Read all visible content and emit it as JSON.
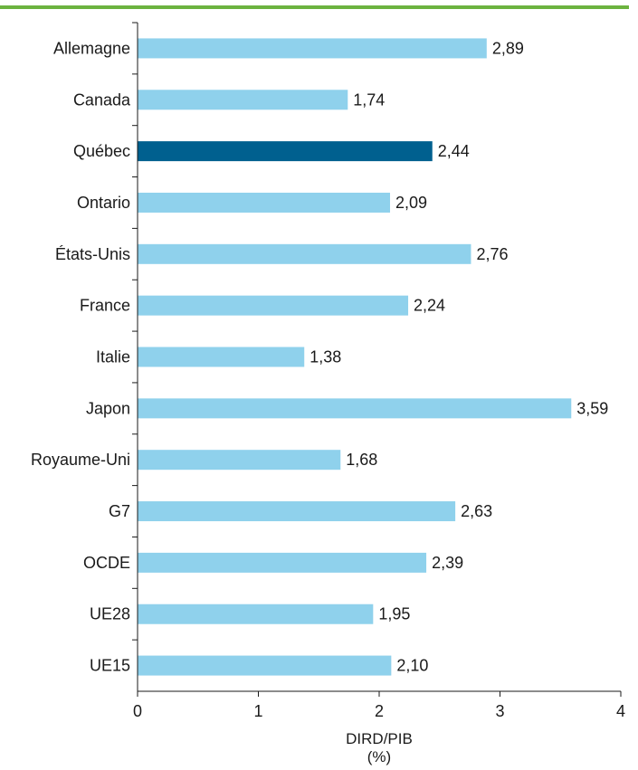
{
  "chart_data": {
    "type": "bar",
    "orientation": "horizontal",
    "categories": [
      "Allemagne",
      "Canada",
      "Québec",
      "Ontario",
      "États-Unis",
      "France",
      "Italie",
      "Japon",
      "Royaume-Uni",
      "G7",
      "OCDE",
      "UE28",
      "UE15"
    ],
    "values": [
      2.89,
      1.74,
      2.44,
      2.09,
      2.76,
      2.24,
      1.38,
      3.59,
      1.68,
      2.63,
      2.39,
      1.95,
      2.1
    ],
    "value_labels": [
      "2,89",
      "1,74",
      "2,44",
      "2,09",
      "2,76",
      "2,24",
      "1,38",
      "3,59",
      "1,68",
      "2,63",
      "2,39",
      "1,95",
      "2,10"
    ],
    "highlight": "Québec",
    "xlabel": "DIRD/PIB",
    "xunit": "(%)",
    "xlim": [
      0,
      4
    ],
    "xticks": [
      "0",
      "1",
      "2",
      "3",
      "4"
    ],
    "grid": false,
    "colors": {
      "bar": "#8fd1ec",
      "highlight": "#00608f",
      "top_rule": "#6cb33f",
      "axis": "#1a1a1a"
    }
  }
}
